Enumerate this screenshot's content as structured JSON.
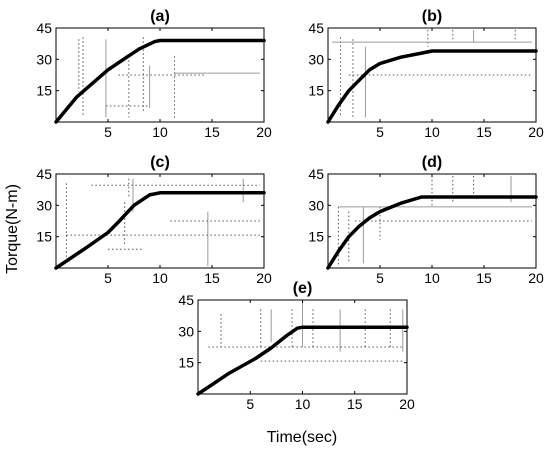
{
  "figure": {
    "ylabel": "Torque(N-m)",
    "xlabel": "Time(sec)"
  },
  "chart_data": [
    {
      "type": "line",
      "title": "(a)",
      "xlim": [
        0,
        20
      ],
      "ylim": [
        0,
        45
      ],
      "xticks": [
        5,
        10,
        15,
        20
      ],
      "yticks": [
        15,
        30,
        45
      ],
      "series": [
        {
          "x": [
            0,
            2,
            5,
            8,
            9.5,
            10,
            20
          ],
          "y": [
            0,
            12,
            25,
            35,
            38.5,
            39,
            39
          ]
        }
      ]
    },
    {
      "type": "line",
      "title": "(b)",
      "xlim": [
        0,
        20
      ],
      "ylim": [
        0,
        45
      ],
      "xticks": [
        5,
        10,
        15,
        20
      ],
      "yticks": [
        15,
        30,
        45
      ],
      "series": [
        {
          "x": [
            0,
            1,
            2,
            3,
            4,
            5,
            7,
            9,
            10,
            20
          ],
          "y": [
            0,
            8,
            15,
            20,
            25,
            28,
            31,
            33,
            34,
            34
          ]
        }
      ]
    },
    {
      "type": "line",
      "title": "(c)",
      "xlim": [
        0,
        20
      ],
      "ylim": [
        0,
        45
      ],
      "xticks": [
        5,
        10,
        15,
        20
      ],
      "yticks": [
        15,
        30,
        45
      ],
      "series": [
        {
          "x": [
            0,
            3,
            5,
            6,
            7.5,
            9,
            10,
            20
          ],
          "y": [
            0,
            10,
            17,
            22,
            30,
            35,
            36,
            36
          ]
        }
      ]
    },
    {
      "type": "line",
      "title": "(d)",
      "xlim": [
        0,
        20
      ],
      "ylim": [
        0,
        45
      ],
      "xticks": [
        5,
        10,
        15,
        20
      ],
      "yticks": [
        15,
        30,
        45
      ],
      "series": [
        {
          "x": [
            0,
            1,
            2,
            3,
            4,
            5,
            7,
            9,
            10,
            20
          ],
          "y": [
            0,
            8,
            15,
            20,
            24,
            27,
            31,
            34,
            34,
            34
          ]
        }
      ]
    },
    {
      "type": "line",
      "title": "(e)",
      "xlim": [
        0,
        20
      ],
      "ylim": [
        0,
        45
      ],
      "xticks": [
        5,
        10,
        15,
        20
      ],
      "yticks": [
        15,
        30,
        45
      ],
      "series": [
        {
          "x": [
            0,
            3,
            5.5,
            7,
            8.5,
            9.5,
            10,
            20
          ],
          "y": [
            0,
            10,
            17,
            22,
            28,
            31.5,
            32,
            32
          ]
        }
      ]
    }
  ]
}
